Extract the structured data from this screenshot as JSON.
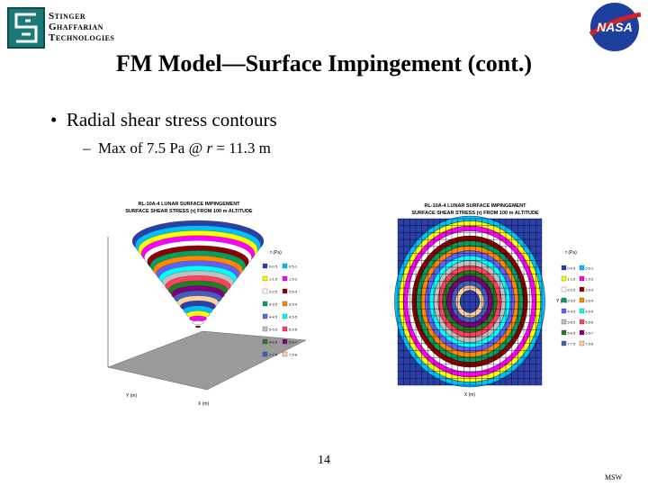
{
  "logo": {
    "lines": [
      "Stinger",
      "Ghaffarian",
      "Technologies"
    ]
  },
  "nasa": "NASA",
  "title": "FM Model—Surface Impingement (cont.)",
  "bullet": "Radial shear stress contours",
  "sub_bullet": {
    "before": "Max of 7.5 Pa @ ",
    "variable": "r",
    "after": " = 11.3 m"
  },
  "figures": [
    {
      "title": [
        "RL-10A-4 LUNAR SURFACE IMPINGEMENT",
        "SURFACE SHEAR STRESS (τ) FROM 100 m ALTITUDE"
      ],
      "legend_title": "τ (Pa)",
      "x_label": "X (m)",
      "y_label": "Y (m)"
    },
    {
      "title": [
        "RL-10A-4 LUNAR SURFACE IMPINGEMENT",
        "SURFACE SHEAR STRESS (τ) FROM 100 m ALTITUDE"
      ],
      "legend_title": "τ (Pa)",
      "x_label": "X (m)",
      "y_label": "Y (m)"
    }
  ],
  "legend": [
    "0-0.5",
    "0.5-1",
    "1-1.5",
    "1.5-2",
    "2-2.5",
    "2.5-3",
    "3-3.5",
    "3.5-4",
    "4-4.5",
    "4.5-5",
    "5-5.5",
    "5.5-6",
    "6-6.5",
    "6.5-7",
    "7-7.5",
    "7.5-8"
  ],
  "page_number": "14",
  "author": "MSW"
}
